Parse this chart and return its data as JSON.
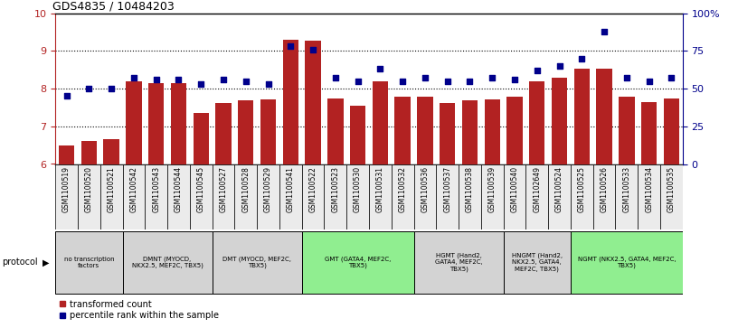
{
  "title": "GDS4835 / 10484203",
  "samples": [
    "GSM1100519",
    "GSM1100520",
    "GSM1100521",
    "GSM1100542",
    "GSM1100543",
    "GSM1100544",
    "GSM1100545",
    "GSM1100527",
    "GSM1100528",
    "GSM1100529",
    "GSM1100541",
    "GSM1100522",
    "GSM1100523",
    "GSM1100530",
    "GSM1100531",
    "GSM1100532",
    "GSM1100536",
    "GSM1100537",
    "GSM1100538",
    "GSM1100539",
    "GSM1100540",
    "GSM1102649",
    "GSM1100524",
    "GSM1100525",
    "GSM1100526",
    "GSM1100533",
    "GSM1100534",
    "GSM1100535"
  ],
  "bar_values": [
    6.48,
    6.62,
    6.65,
    8.2,
    8.15,
    8.15,
    7.35,
    7.62,
    7.68,
    7.72,
    9.3,
    9.28,
    7.73,
    7.55,
    8.18,
    7.78,
    7.78,
    7.62,
    7.7,
    7.72,
    7.78,
    8.18,
    8.28,
    8.52,
    8.52,
    7.78,
    7.63,
    7.73
  ],
  "dot_values": [
    45,
    50,
    50,
    57,
    56,
    56,
    53,
    56,
    55,
    53,
    78,
    76,
    57,
    55,
    63,
    55,
    57,
    55,
    55,
    57,
    56,
    62,
    65,
    70,
    88,
    57,
    55,
    57
  ],
  "ylim_left": [
    6,
    10
  ],
  "ylim_right": [
    0,
    100
  ],
  "yticks_left": [
    6,
    7,
    8,
    9,
    10
  ],
  "yticks_right": [
    0,
    25,
    50,
    75,
    100
  ],
  "ytick_labels_right": [
    "0",
    "25",
    "50",
    "75",
    "100%"
  ],
  "bar_color": "#b22222",
  "dot_color": "#00008b",
  "protocol_groups": [
    {
      "label": "no transcription\nfactors",
      "start": 0,
      "end": 3,
      "color": "#d3d3d3"
    },
    {
      "label": "DMNT (MYOCD,\nNKX2.5, MEF2C, TBX5)",
      "start": 3,
      "end": 7,
      "color": "#d3d3d3"
    },
    {
      "label": "DMT (MYOCD, MEF2C,\nTBX5)",
      "start": 7,
      "end": 11,
      "color": "#d3d3d3"
    },
    {
      "label": "GMT (GATA4, MEF2C,\nTBX5)",
      "start": 11,
      "end": 16,
      "color": "#90ee90"
    },
    {
      "label": "HGMT (Hand2,\nGATA4, MEF2C,\nTBX5)",
      "start": 16,
      "end": 20,
      "color": "#d3d3d3"
    },
    {
      "label": "HNGMT (Hand2,\nNKX2.5, GATA4,\nMEF2C, TBX5)",
      "start": 20,
      "end": 23,
      "color": "#d3d3d3"
    },
    {
      "label": "NGMT (NKX2.5, GATA4, MEF2C,\nTBX5)",
      "start": 23,
      "end": 28,
      "color": "#90ee90"
    }
  ],
  "legend_labels": [
    "transformed count",
    "percentile rank within the sample"
  ]
}
